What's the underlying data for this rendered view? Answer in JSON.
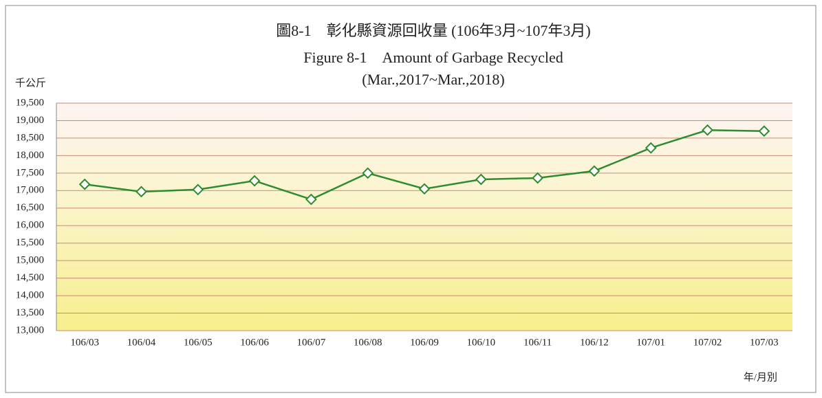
{
  "chart_data": {
    "type": "line",
    "title": "圖8-1　彰化縣資源回收量 (106年3月~107年3月)",
    "title_en": "Figure 8-1　Amount of Garbage Recycled",
    "title_en_period": "(Mar.,2017~Mar.,2018)",
    "y_label": "千公斤",
    "x_label": "年/月別",
    "categories": [
      "106/03",
      "106/04",
      "106/05",
      "106/06",
      "106/07",
      "106/08",
      "106/09",
      "106/10",
      "106/11",
      "106/12",
      "107/01",
      "107/02",
      "107/03"
    ],
    "series": [
      {
        "name": "資源回收量",
        "color": "#2e8b2e",
        "values": [
          17180,
          16970,
          17030,
          17280,
          16750,
          17500,
          17050,
          17320,
          17360,
          17560,
          18220,
          18730,
          18700
        ]
      }
    ],
    "ylim": [
      13000,
      19500
    ],
    "yticks": [
      {
        "value": 13000,
        "label": "13,000"
      },
      {
        "value": 13500,
        "label": "13,500"
      },
      {
        "value": 14000,
        "label": "14,000"
      },
      {
        "value": 14500,
        "label": "14,500"
      },
      {
        "value": 15000,
        "label": "15,000"
      },
      {
        "value": 15500,
        "label": "15,500"
      },
      {
        "value": 16000,
        "label": "16,000"
      },
      {
        "value": 16500,
        "label": "16,500"
      },
      {
        "value": 17000,
        "label": "17,000"
      },
      {
        "value": 17500,
        "label": "17,500"
      },
      {
        "value": 18000,
        "label": "18,000"
      },
      {
        "value": 18500,
        "label": "18,500"
      },
      {
        "value": 19000,
        "label": "19,000"
      },
      {
        "value": 19500,
        "label": "19,500"
      }
    ],
    "grid": true
  }
}
